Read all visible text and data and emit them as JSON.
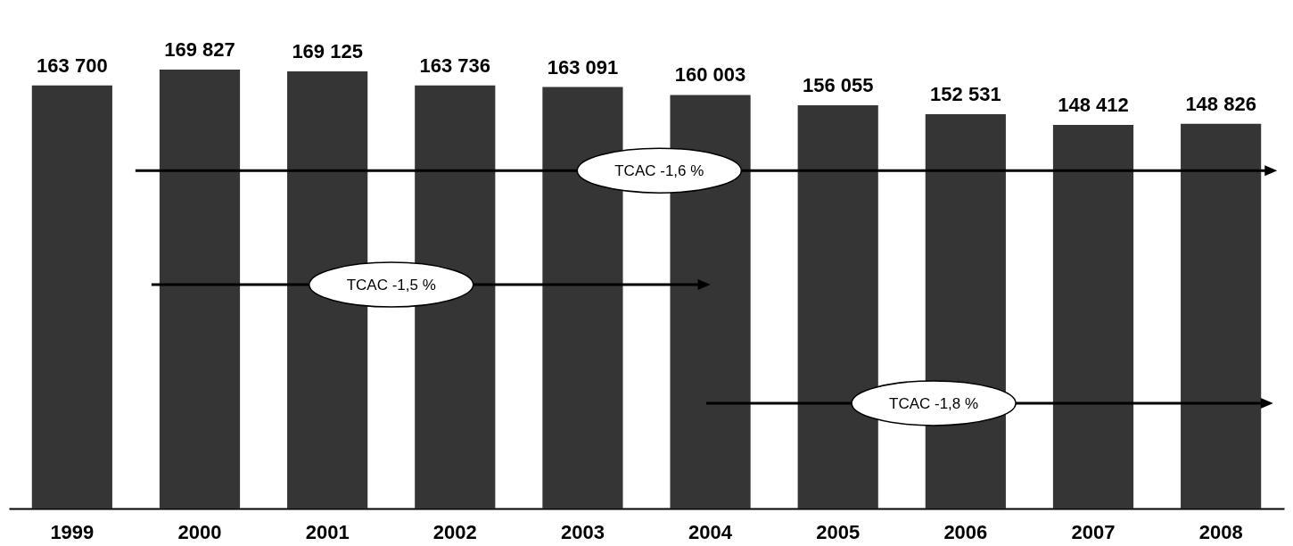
{
  "chart_data": {
    "type": "bar",
    "categories": [
      "1999",
      "2000",
      "2001",
      "2002",
      "2003",
      "2004",
      "2005",
      "2006",
      "2007",
      "2008"
    ],
    "values": [
      163700,
      169827,
      169125,
      163736,
      163091,
      160003,
      156055,
      152531,
      148412,
      148826
    ],
    "value_labels": [
      "163 700",
      "169 827",
      "169 125",
      "163 736",
      "163 091",
      "160 003",
      "156 055",
      "152 531",
      "148 412",
      "148 826"
    ],
    "color": "#353535",
    "annotations": [
      "TCAC -1,6 %",
      "TCAC -1,5 %",
      "TCAC -1,8 %"
    ]
  }
}
